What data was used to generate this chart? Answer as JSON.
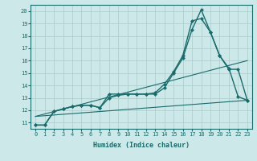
{
  "xlabel": "Humidex (Indice chaleur)",
  "ylabel": "",
  "xlim": [
    -0.5,
    23.5
  ],
  "ylim": [
    10.5,
    20.5
  ],
  "yticks": [
    11,
    12,
    13,
    14,
    15,
    16,
    17,
    18,
    19,
    20
  ],
  "xticks": [
    0,
    1,
    2,
    3,
    4,
    5,
    6,
    7,
    8,
    9,
    10,
    11,
    12,
    13,
    14,
    15,
    16,
    17,
    18,
    19,
    20,
    21,
    22,
    23
  ],
  "background_color": "#cce8e8",
  "grid_color": "#aacccc",
  "line_color": "#1a6b6b",
  "lines": [
    {
      "x": [
        0,
        1,
        2,
        3,
        4,
        5,
        6,
        7,
        8,
        9,
        10,
        11,
        12,
        13,
        14,
        15,
        16,
        17,
        18,
        19,
        20,
        21,
        22,
        23
      ],
      "y": [
        10.8,
        10.8,
        11.9,
        12.1,
        12.3,
        12.4,
        12.4,
        12.2,
        13.3,
        13.3,
        13.3,
        13.3,
        13.3,
        13.4,
        14.1,
        15.1,
        16.4,
        19.2,
        19.4,
        18.3,
        16.4,
        15.4,
        13.1,
        12.8
      ],
      "marker": "D",
      "markersize": 2.0,
      "linewidth": 1.0
    },
    {
      "x": [
        0,
        1,
        2,
        3,
        4,
        5,
        6,
        7,
        8,
        9,
        10,
        11,
        12,
        13,
        14,
        15,
        16,
        17,
        18,
        19,
        20,
        21,
        22,
        23
      ],
      "y": [
        10.8,
        10.8,
        11.9,
        12.1,
        12.3,
        12.4,
        12.4,
        12.2,
        13.0,
        13.2,
        13.3,
        13.3,
        13.3,
        13.3,
        13.8,
        15.0,
        16.2,
        18.5,
        20.1,
        18.3,
        16.4,
        15.3,
        15.3,
        12.8
      ],
      "marker": "D",
      "markersize": 2.0,
      "linewidth": 1.0
    },
    {
      "x": [
        0,
        23
      ],
      "y": [
        11.5,
        16.0
      ],
      "marker": null,
      "linewidth": 0.8
    },
    {
      "x": [
        0,
        23
      ],
      "y": [
        11.5,
        12.8
      ],
      "marker": null,
      "linewidth": 0.8
    }
  ]
}
